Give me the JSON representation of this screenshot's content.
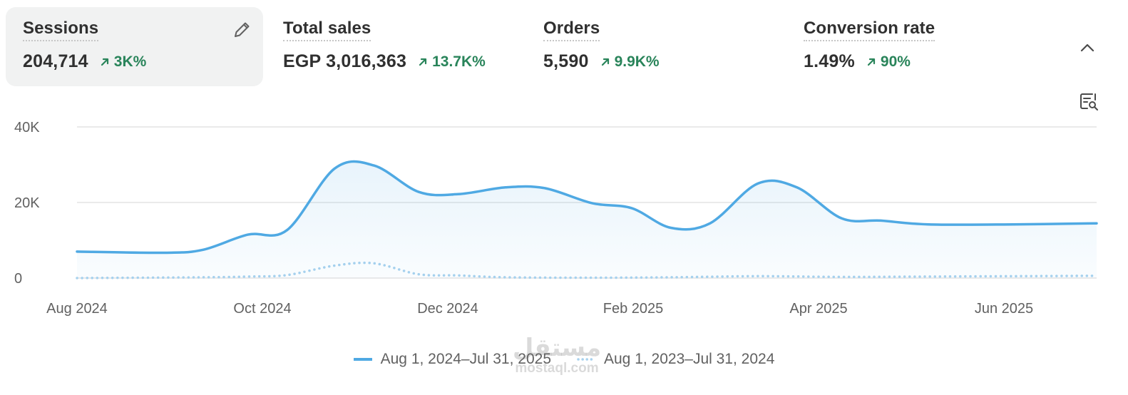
{
  "metrics": [
    {
      "label": "Sessions",
      "value": "204,714",
      "delta": "3K%"
    },
    {
      "label": "Total sales",
      "value": "EGP 3,016,363",
      "delta": "13.7K%"
    },
    {
      "label": "Orders",
      "value": "5,590",
      "delta": "9.9K%"
    },
    {
      "label": "Conversion rate",
      "value": "1.49%",
      "delta": "90%"
    }
  ],
  "icons": {
    "edit": "pencil-icon",
    "collapse": "chevron-up-icon",
    "explore": "report-search-icon",
    "delta": "arrow-up-right-icon"
  },
  "colors": {
    "current": "#4fa9e3",
    "previous": "#a8d2ee",
    "delta": "#29845a",
    "grid": "#e3e3e3",
    "active_card": "#f1f2f2"
  },
  "legend": {
    "current": "Aug 1, 2024–Jul 31, 2025",
    "previous": "Aug 1, 2023–Jul 31, 2024"
  },
  "watermark": {
    "arabic": "مستقل",
    "latin": "mostaql.com"
  },
  "chart_data": {
    "type": "line",
    "metric": "Sessions",
    "x_ticks": [
      "Aug 2024",
      "Oct 2024",
      "Dec 2024",
      "Feb 2025",
      "Apr 2025",
      "Jun 2025"
    ],
    "y_ticks": [
      "40K",
      "20K",
      "0"
    ],
    "ylim": [
      0,
      40000
    ],
    "grid": true,
    "legend_position": "bottom",
    "series": [
      {
        "name": "Aug 1, 2024–Jul 31, 2025",
        "style": "solid",
        "fill": true,
        "points": [
          [
            "2024-08-01",
            7000
          ],
          [
            "2024-09-01",
            6700
          ],
          [
            "2024-09-15",
            7500
          ],
          [
            "2024-10-01",
            11500
          ],
          [
            "2024-10-15",
            12700
          ],
          [
            "2024-11-01",
            29000
          ],
          [
            "2024-11-15",
            29800
          ],
          [
            "2024-12-01",
            22800
          ],
          [
            "2024-12-15",
            22200
          ],
          [
            "2025-01-01",
            24000
          ],
          [
            "2025-01-15",
            23800
          ],
          [
            "2025-02-01",
            19800
          ],
          [
            "2025-02-15",
            18500
          ],
          [
            "2025-03-01",
            13300
          ],
          [
            "2025-03-15",
            14500
          ],
          [
            "2025-04-01",
            25000
          ],
          [
            "2025-04-15",
            24000
          ],
          [
            "2025-05-01",
            15800
          ],
          [
            "2025-05-15",
            15200
          ],
          [
            "2025-06-01",
            14200
          ],
          [
            "2025-07-01",
            14200
          ],
          [
            "2025-07-31",
            14500
          ]
        ]
      },
      {
        "name": "Aug 1, 2023–Jul 31, 2024",
        "style": "dotted",
        "fill": false,
        "points": [
          [
            "2024-08-01",
            0
          ],
          [
            "2024-09-15",
            200
          ],
          [
            "2024-10-01",
            400
          ],
          [
            "2024-10-15",
            800
          ],
          [
            "2024-11-01",
            3300
          ],
          [
            "2024-11-15",
            3900
          ],
          [
            "2024-12-01",
            1000
          ],
          [
            "2024-12-15",
            700
          ],
          [
            "2025-01-01",
            200
          ],
          [
            "2025-02-01",
            100
          ],
          [
            "2025-03-01",
            200
          ],
          [
            "2025-04-01",
            500
          ],
          [
            "2025-05-01",
            300
          ],
          [
            "2025-06-01",
            400
          ],
          [
            "2025-07-31",
            600
          ]
        ]
      }
    ]
  }
}
